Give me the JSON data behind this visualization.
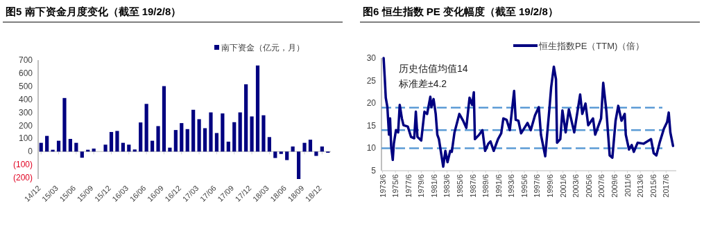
{
  "chart_data": [
    {
      "type": "bar",
      "title": "图5  南下资金月度变化（截至 19/2/8）",
      "legend": "top right",
      "categories": [
        "14/12",
        null,
        null,
        "15/03",
        null,
        null,
        "15/06",
        null,
        null,
        "15/09",
        null,
        null,
        "15/12",
        null,
        null,
        "16/03",
        null,
        null,
        "16/06",
        null,
        null,
        "16/09",
        null,
        null,
        "16/12",
        null,
        null,
        "17/03",
        null,
        null,
        "17/06",
        null,
        null,
        "17/09",
        null,
        null,
        "17/12",
        null,
        null,
        "18/03",
        null,
        null,
        "18/06",
        null,
        null,
        "18/09",
        null,
        null,
        "18/12",
        null
      ],
      "series": [
        {
          "name": "南下资金（亿元，月）",
          "color": "#000080",
          "values": [
            67,
            120,
            14,
            83,
            410,
            97,
            67,
            -47,
            14,
            23,
            0,
            53,
            150,
            158,
            67,
            53,
            16,
            223,
            365,
            83,
            195,
            501,
            30,
            165,
            218,
            172,
            320,
            248,
            179,
            300,
            142,
            292,
            76,
            225,
            300,
            515,
            269,
            659,
            278,
            111,
            -49,
            -18,
            -65,
            39,
            -210,
            67,
            91,
            -33,
            39,
            -9
          ]
        }
      ],
      "ylim": [
        -210,
        700
      ],
      "yticks": [
        {
          "value": -200,
          "label": "(200)"
        },
        {
          "value": -100,
          "label": "(100)"
        },
        0,
        100,
        200,
        300,
        400,
        500,
        600,
        700
      ]
    },
    {
      "type": "line",
      "title": "图6  恒生指数 PE 变化幅度（截至 19/2/8）",
      "legend": "top right",
      "series": [
        {
          "name": "恒生指数PE（TTM)（倍）",
          "color": "#000080",
          "x": [
            "1973-08",
            "1973-10",
            "1973-12",
            "1974-03",
            "1974-06",
            "1974-08",
            "1974-10",
            "1975-01",
            "1975-03",
            "1975-07",
            "1975-11",
            "1976-02",
            "1976-06",
            "1976-09",
            "1977-05",
            "1977-11",
            "1978-05",
            "1978-08",
            "1978-11",
            "1979-06",
            "1979-12",
            "1980-05",
            "1980-11",
            "1981-01",
            "1981-05",
            "1981-09",
            "1981-12",
            "1982-03",
            "1982-11",
            "1983-03",
            "1983-07",
            "1983-12",
            "1984-03",
            "1984-08",
            "1985-05",
            "1985-12",
            "1986-06",
            "1986-12",
            "1987-05",
            "1987-08",
            "1987-10",
            "1988-06",
            "1988-12",
            "1989-05",
            "1989-11",
            "1990-03",
            "1990-09",
            "1991-05",
            "1991-11",
            "1992-03",
            "1992-09",
            "1993-03",
            "1993-11",
            "1994-02",
            "1994-07",
            "1994-12",
            "1995-12",
            "1996-06",
            "1997-02",
            "1997-09",
            "1998-01",
            "1998-09",
            "1999-05",
            "1999-08",
            "2000-01",
            "2000-05",
            "2000-07",
            "2001-01",
            "2001-05",
            "2001-11",
            "2002-05",
            "2003-03",
            "2004-02",
            "2004-06",
            "2004-12",
            "2005-05",
            "2006-02",
            "2006-06",
            "2007-05",
            "2007-09",
            "2008-03",
            "2008-09",
            "2009-02",
            "2009-08",
            "2010-01",
            "2010-07",
            "2011-01",
            "2011-03",
            "2011-09",
            "2012-02",
            "2012-06",
            "2013-01",
            "2013-12",
            "2015-02",
            "2015-07",
            "2015-12",
            "2016-06",
            "2017-02",
            "2017-08",
            "2017-11",
            "2018-02",
            "2018-07"
          ],
          "values": [
            30,
            25.8,
            21.2,
            19.1,
            13.0,
            16.6,
            10.5,
            7.4,
            11.0,
            14.0,
            13.5,
            19.6,
            16.6,
            15.1,
            14.8,
            12.5,
            12.2,
            18.1,
            12.5,
            11.7,
            18.1,
            17.6,
            21.4,
            19.1,
            20.9,
            17.6,
            13.0,
            12.0,
            5.9,
            9.4,
            6.9,
            9.4,
            9.2,
            13.5,
            17.6,
            16.1,
            14.5,
            21.2,
            19.6,
            22.4,
            12.0,
            13.0,
            14.0,
            9.4,
            11.0,
            11.5,
            9.4,
            12.0,
            13.3,
            16.6,
            16.3,
            14.0,
            22.7,
            16.3,
            16.1,
            13.3,
            15.6,
            14.0,
            17.3,
            19.1,
            13.0,
            8.2,
            19.1,
            23.5,
            28.1,
            25.3,
            11.2,
            12.0,
            18.4,
            13.5,
            18.6,
            13.5,
            21.9,
            17.6,
            19.9,
            15.1,
            16.6,
            13.0,
            16.6,
            24.5,
            18.1,
            8.4,
            7.9,
            16.1,
            19.4,
            16.1,
            17.6,
            13.0,
            9.7,
            10.7,
            9.2,
            11.2,
            11.0,
            12.0,
            8.9,
            8.4,
            11.2,
            14.3,
            15.8,
            17.9,
            13.5,
            10.5
          ]
        }
      ],
      "xlim": [
        "1973-04",
        "2019-01"
      ],
      "xticks": [
        {
          "value": "1973-06",
          "label": "1973/6"
        },
        {
          "value": "1975-06",
          "label": "1975/6"
        },
        {
          "value": "1977-06",
          "label": "1977/6"
        },
        {
          "value": "1979-06",
          "label": "1979/6"
        },
        {
          "value": "1981-06",
          "label": "1981/6"
        },
        {
          "value": "1983-06",
          "label": "1983/6"
        },
        {
          "value": "1985-06",
          "label": "1985/6"
        },
        {
          "value": "1987-06",
          "label": "1987/6"
        },
        {
          "value": "1989-06",
          "label": "1989/6"
        },
        {
          "value": "1991-06",
          "label": "1991/6"
        },
        {
          "value": "1993-06",
          "label": "1993/6"
        },
        {
          "value": "1995-06",
          "label": "1995/6"
        },
        {
          "value": "1997-06",
          "label": "1997/6"
        },
        {
          "value": "1999-06",
          "label": "1999/6"
        },
        {
          "value": "2001-06",
          "label": "2001/6"
        },
        {
          "value": "2003-06",
          "label": "2003/6"
        },
        {
          "value": "2005-06",
          "label": "2005/6"
        },
        {
          "value": "2007-06",
          "label": "2007/6"
        },
        {
          "value": "2009-06",
          "label": "2009/6"
        },
        {
          "value": "2011-06",
          "label": "2011/6"
        },
        {
          "value": "2013-06",
          "label": "2013/6"
        },
        {
          "value": "2015-06",
          "label": "2015/6"
        },
        {
          "value": "2017-06",
          "label": "2017/6"
        }
      ],
      "ylim": [
        5,
        30
      ],
      "yticks": [
        5,
        10,
        15,
        20,
        25,
        30
      ],
      "ref_lines": [
        {
          "axis": "y",
          "value": 19,
          "color": "#5b9bd5",
          "line_style": "dashed"
        },
        {
          "axis": "y",
          "value": 14,
          "color": "#5b9bd5",
          "line_style": "dashed"
        },
        {
          "axis": "y",
          "value": 10,
          "color": "#5b9bd5",
          "line_style": "dashed"
        }
      ],
      "annotations": [
        "历史估值均值14",
        "标准差±4.2"
      ]
    }
  ]
}
